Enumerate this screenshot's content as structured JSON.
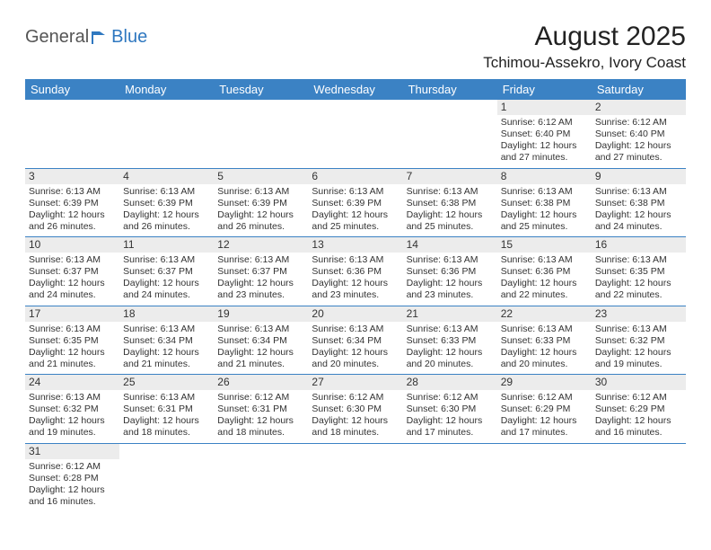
{
  "brand": {
    "word1": "General",
    "word2": "Blue",
    "logo_color": "#2f78c0"
  },
  "title": "August 2025",
  "location": "Tchimou-Assekro, Ivory Coast",
  "header_bg": "#3b82c4",
  "header_fg": "#ffffff",
  "border_color": "#3b82c4",
  "daynum_bg": "#ececec",
  "columns": [
    "Sunday",
    "Monday",
    "Tuesday",
    "Wednesday",
    "Thursday",
    "Friday",
    "Saturday"
  ],
  "weeks": [
    [
      null,
      null,
      null,
      null,
      null,
      {
        "n": "1",
        "sr": "6:12 AM",
        "ss": "6:40 PM",
        "dl": "12 hours and 27 minutes."
      },
      {
        "n": "2",
        "sr": "6:12 AM",
        "ss": "6:40 PM",
        "dl": "12 hours and 27 minutes."
      }
    ],
    [
      {
        "n": "3",
        "sr": "6:13 AM",
        "ss": "6:39 PM",
        "dl": "12 hours and 26 minutes."
      },
      {
        "n": "4",
        "sr": "6:13 AM",
        "ss": "6:39 PM",
        "dl": "12 hours and 26 minutes."
      },
      {
        "n": "5",
        "sr": "6:13 AM",
        "ss": "6:39 PM",
        "dl": "12 hours and 26 minutes."
      },
      {
        "n": "6",
        "sr": "6:13 AM",
        "ss": "6:39 PM",
        "dl": "12 hours and 25 minutes."
      },
      {
        "n": "7",
        "sr": "6:13 AM",
        "ss": "6:38 PM",
        "dl": "12 hours and 25 minutes."
      },
      {
        "n": "8",
        "sr": "6:13 AM",
        "ss": "6:38 PM",
        "dl": "12 hours and 25 minutes."
      },
      {
        "n": "9",
        "sr": "6:13 AM",
        "ss": "6:38 PM",
        "dl": "12 hours and 24 minutes."
      }
    ],
    [
      {
        "n": "10",
        "sr": "6:13 AM",
        "ss": "6:37 PM",
        "dl": "12 hours and 24 minutes."
      },
      {
        "n": "11",
        "sr": "6:13 AM",
        "ss": "6:37 PM",
        "dl": "12 hours and 24 minutes."
      },
      {
        "n": "12",
        "sr": "6:13 AM",
        "ss": "6:37 PM",
        "dl": "12 hours and 23 minutes."
      },
      {
        "n": "13",
        "sr": "6:13 AM",
        "ss": "6:36 PM",
        "dl": "12 hours and 23 minutes."
      },
      {
        "n": "14",
        "sr": "6:13 AM",
        "ss": "6:36 PM",
        "dl": "12 hours and 23 minutes."
      },
      {
        "n": "15",
        "sr": "6:13 AM",
        "ss": "6:36 PM",
        "dl": "12 hours and 22 minutes."
      },
      {
        "n": "16",
        "sr": "6:13 AM",
        "ss": "6:35 PM",
        "dl": "12 hours and 22 minutes."
      }
    ],
    [
      {
        "n": "17",
        "sr": "6:13 AM",
        "ss": "6:35 PM",
        "dl": "12 hours and 21 minutes."
      },
      {
        "n": "18",
        "sr": "6:13 AM",
        "ss": "6:34 PM",
        "dl": "12 hours and 21 minutes."
      },
      {
        "n": "19",
        "sr": "6:13 AM",
        "ss": "6:34 PM",
        "dl": "12 hours and 21 minutes."
      },
      {
        "n": "20",
        "sr": "6:13 AM",
        "ss": "6:34 PM",
        "dl": "12 hours and 20 minutes."
      },
      {
        "n": "21",
        "sr": "6:13 AM",
        "ss": "6:33 PM",
        "dl": "12 hours and 20 minutes."
      },
      {
        "n": "22",
        "sr": "6:13 AM",
        "ss": "6:33 PM",
        "dl": "12 hours and 20 minutes."
      },
      {
        "n": "23",
        "sr": "6:13 AM",
        "ss": "6:32 PM",
        "dl": "12 hours and 19 minutes."
      }
    ],
    [
      {
        "n": "24",
        "sr": "6:13 AM",
        "ss": "6:32 PM",
        "dl": "12 hours and 19 minutes."
      },
      {
        "n": "25",
        "sr": "6:13 AM",
        "ss": "6:31 PM",
        "dl": "12 hours and 18 minutes."
      },
      {
        "n": "26",
        "sr": "6:12 AM",
        "ss": "6:31 PM",
        "dl": "12 hours and 18 minutes."
      },
      {
        "n": "27",
        "sr": "6:12 AM",
        "ss": "6:30 PM",
        "dl": "12 hours and 18 minutes."
      },
      {
        "n": "28",
        "sr": "6:12 AM",
        "ss": "6:30 PM",
        "dl": "12 hours and 17 minutes."
      },
      {
        "n": "29",
        "sr": "6:12 AM",
        "ss": "6:29 PM",
        "dl": "12 hours and 17 minutes."
      },
      {
        "n": "30",
        "sr": "6:12 AM",
        "ss": "6:29 PM",
        "dl": "12 hours and 16 minutes."
      }
    ],
    [
      {
        "n": "31",
        "sr": "6:12 AM",
        "ss": "6:28 PM",
        "dl": "12 hours and 16 minutes."
      },
      null,
      null,
      null,
      null,
      null,
      null
    ]
  ],
  "labels": {
    "sunrise": "Sunrise: ",
    "sunset": "Sunset: ",
    "daylight": "Daylight: "
  }
}
